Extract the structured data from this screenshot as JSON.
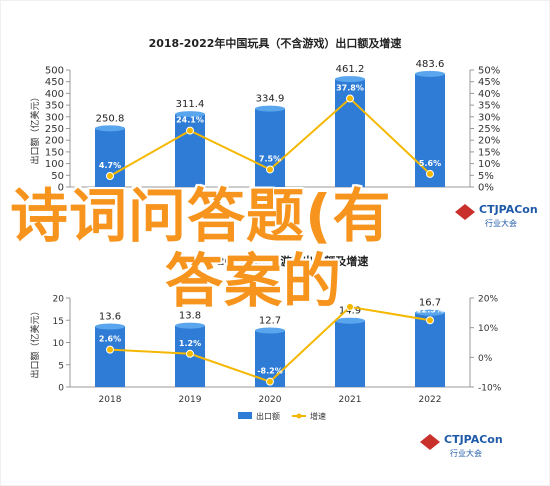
{
  "colors": {
    "bar": "#2e7cd6",
    "bar_top": "#5aa6ee",
    "line": "#f5b800",
    "point": "#f5b800",
    "axis_text": "#333333",
    "grid": "#e6e6e6",
    "overlay": "#f7941d",
    "logo_red": "#c9302c",
    "logo_blue": "#1f5aa8",
    "label_box": "#2e7cd6"
  },
  "overlay": {
    "line1": "诗词问答题(有",
    "line2": "答案的"
  },
  "chart_data": [
    {
      "type": "bar",
      "title": "2018-2022年中国玩具（不含游戏）出口额及增速",
      "categories": [
        "2018",
        "2019",
        "2020",
        "2021",
        "2022"
      ],
      "series": [
        {
          "kind": "bar",
          "values": [
            250.8,
            311.4,
            334.9,
            461.2,
            483.6
          ],
          "value_labels": [
            "250.8",
            "311.4",
            "334.9",
            "461.2",
            "483.6"
          ]
        },
        {
          "kind": "line",
          "values": [
            4.7,
            24.1,
            7.5,
            37.8,
            5.6
          ],
          "value_labels": [
            "4.7%",
            "24.1%",
            "7.5%",
            "37.8%",
            "5.6%"
          ]
        }
      ],
      "ylabel": "出口额（亿美元）",
      "ylim": [
        0,
        500
      ],
      "yticks": [
        "0",
        "50",
        "100",
        "150",
        "200",
        "250",
        "300",
        "350",
        "400",
        "450",
        "500"
      ],
      "y2lim": [
        0,
        50
      ],
      "y2ticks": [
        "0%",
        "5%",
        "10%",
        "15%",
        "20%",
        "25%",
        "30%",
        "35%",
        "40%",
        "45%",
        "50%"
      ],
      "grid": false,
      "logo": {
        "name": "CTJPACon",
        "sub": "行业大会"
      }
    },
    {
      "type": "bar",
      "title": "2018-2022年中国游戏出口额及增速",
      "categories": [
        "2018",
        "2019",
        "2020",
        "2021",
        "2022"
      ],
      "series": [
        {
          "kind": "bar",
          "name": "出口额",
          "values": [
            13.6,
            13.8,
            12.7,
            14.9,
            16.7
          ],
          "value_labels": [
            "13.6",
            "13.8",
            "12.7",
            "14.9",
            "16.7"
          ]
        },
        {
          "kind": "line",
          "name": "增速",
          "values": [
            2.6,
            1.2,
            -8.2,
            17.0,
            12.5
          ],
          "value_labels": [
            "2.6%",
            "1.2%",
            "-8.2%",
            "17.0%",
            "12.5%"
          ]
        }
      ],
      "ylabel": "出口额（亿美元）",
      "ylim": [
        0,
        20
      ],
      "yticks": [
        "0",
        "5",
        "10",
        "15",
        "20"
      ],
      "y2lim": [
        -10,
        20
      ],
      "y2ticks": [
        "-10%",
        "0%",
        "10%",
        "20%"
      ],
      "grid": false,
      "legend": {
        "placement": "bottom",
        "items": [
          "出口额",
          "增速"
        ]
      },
      "logo": {
        "name": "CTJPACon",
        "sub": "行业大会"
      }
    }
  ]
}
